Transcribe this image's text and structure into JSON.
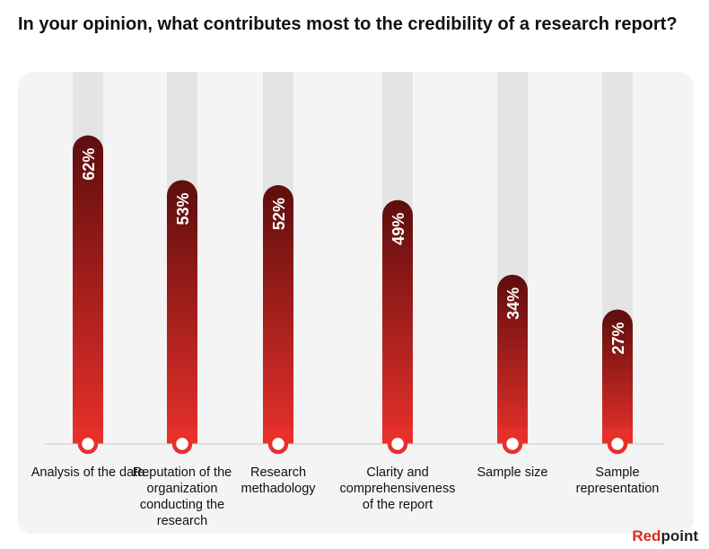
{
  "title": "In your opinion, what contributes most to the credibility of a research report?",
  "brand": {
    "part1": "Red",
    "part2": "point",
    "accent": "#e02a20"
  },
  "colors": {
    "bar_top": "#5e0e0e",
    "bar_bottom": "#e8302a",
    "track": "#e4e4e4",
    "panel": "#f4f4f4"
  },
  "chart_data": {
    "type": "bar",
    "orientation": "vertical",
    "categories": [
      "Analysis of the data",
      "Reputation of the organization conducting the research",
      "Research methadology",
      "Clarity and comprehensiveness of the report",
      "Sample size",
      "Sample representation"
    ],
    "values": [
      62,
      53,
      52,
      49,
      34,
      27
    ],
    "value_labels": [
      "62%",
      "53%",
      "52%",
      "49%",
      "34%",
      "27%"
    ],
    "ylim": [
      0,
      80
    ],
    "grid": false
  }
}
